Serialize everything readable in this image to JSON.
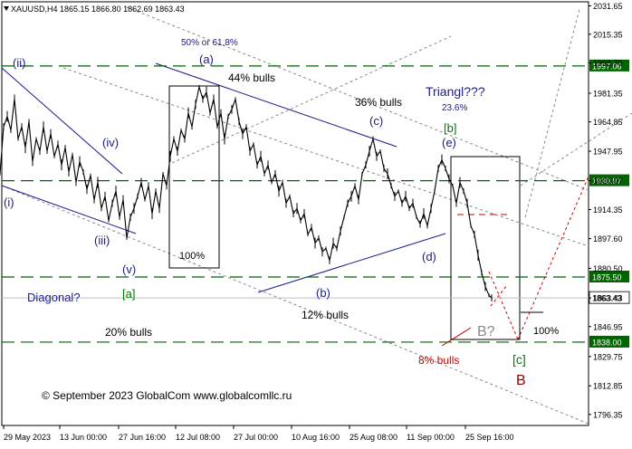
{
  "chart_data": {
    "type": "candlestick",
    "symbol_info": {
      "symbol": "XAUUSD,H4",
      "open": "1865.15",
      "high": "1866.80",
      "low": "1862.69",
      "close": "1863.43"
    },
    "ylim": [
      1790,
      2034
    ],
    "y_ticks": [
      "2031.65",
      "2015.35",
      "1998.70",
      "1981.35",
      "1964.85",
      "1947.95",
      "1930.97",
      "1914.35",
      "1897.60",
      "1880.50",
      "1863.43",
      "1846.95",
      "1829.75",
      "1812.85",
      "1796.35"
    ],
    "x_ticks": [
      "29 May 2023",
      "13 Jun 00:00",
      "27 Jun 16:00",
      "12 Jul 08:00",
      "27 Jul 00:00",
      "10 Aug 16:00",
      "25 Aug 08:00",
      "11 Sep 00:00",
      "25 Sep 16:00"
    ],
    "levels": [
      {
        "value": 1997.06,
        "label": "1997.06",
        "color": "#006400"
      },
      {
        "value": 1930.97,
        "label": "1930.97",
        "color": "#006400"
      },
      {
        "value": 1875.5,
        "label": "1875.50",
        "color": "#006400"
      },
      {
        "value": 1838.0,
        "label": "1838.00",
        "color": "#006400"
      }
    ],
    "current_price": {
      "value": 1863.43,
      "label": "1863.43"
    },
    "price_path": [
      [
        0,
        1935
      ],
      [
        4,
        1962
      ],
      [
        8,
        1968
      ],
      [
        12,
        1960
      ],
      [
        16,
        1978
      ],
      [
        20,
        1955
      ],
      [
        24,
        1962
      ],
      [
        28,
        1950
      ],
      [
        32,
        1965
      ],
      [
        36,
        1942
      ],
      [
        40,
        1955
      ],
      [
        44,
        1948
      ],
      [
        48,
        1962
      ],
      [
        52,
        1948
      ],
      [
        56,
        1958
      ],
      [
        60,
        1945
      ],
      [
        64,
        1952
      ],
      [
        68,
        1940
      ],
      [
        72,
        1950
      ],
      [
        76,
        1936
      ],
      [
        80,
        1946
      ],
      [
        84,
        1930
      ],
      [
        88,
        1942
      ],
      [
        92,
        1936
      ],
      [
        96,
        1926
      ],
      [
        100,
        1934
      ],
      [
        104,
        1920
      ],
      [
        108,
        1930
      ],
      [
        112,
        1915
      ],
      [
        116,
        1922
      ],
      [
        120,
        1908
      ],
      [
        124,
        1918
      ],
      [
        128,
        1925
      ],
      [
        132,
        1910
      ],
      [
        136,
        1920
      ],
      [
        140,
        1898
      ],
      [
        144,
        1910
      ],
      [
        148,
        1915
      ],
      [
        152,
        1922
      ],
      [
        156,
        1930
      ],
      [
        160,
        1920
      ],
      [
        164,
        1928
      ],
      [
        168,
        1912
      ],
      [
        172,
        1925
      ],
      [
        176,
        1915
      ],
      [
        180,
        1935
      ],
      [
        184,
        1928
      ],
      [
        188,
        1945
      ],
      [
        192,
        1955
      ],
      [
        196,
        1948
      ],
      [
        200,
        1960
      ],
      [
        204,
        1955
      ],
      [
        208,
        1970
      ],
      [
        212,
        1962
      ],
      [
        216,
        1975
      ],
      [
        220,
        1985
      ],
      [
        224,
        1978
      ],
      [
        228,
        1982
      ],
      [
        232,
        1970
      ],
      [
        236,
        1978
      ],
      [
        240,
        1962
      ],
      [
        244,
        1970
      ],
      [
        248,
        1955
      ],
      [
        252,
        1968
      ],
      [
        256,
        1972
      ],
      [
        260,
        1978
      ],
      [
        264,
        1965
      ],
      [
        268,
        1958
      ],
      [
        272,
        1962
      ],
      [
        276,
        1948
      ],
      [
        280,
        1952
      ],
      [
        284,
        1940
      ],
      [
        288,
        1945
      ],
      [
        292,
        1935
      ],
      [
        296,
        1940
      ],
      [
        300,
        1930
      ],
      [
        304,
        1935
      ],
      [
        308,
        1925
      ],
      [
        312,
        1930
      ],
      [
        316,
        1918
      ],
      [
        320,
        1922
      ],
      [
        324,
        1912
      ],
      [
        328,
        1915
      ],
      [
        332,
        1908
      ],
      [
        336,
        1912
      ],
      [
        340,
        1900
      ],
      [
        344,
        1904
      ],
      [
        348,
        1895
      ],
      [
        352,
        1898
      ],
      [
        356,
        1890
      ],
      [
        360,
        1892
      ],
      [
        364,
        1885
      ],
      [
        368,
        1895
      ],
      [
        372,
        1892
      ],
      [
        376,
        1902
      ],
      [
        380,
        1910
      ],
      [
        384,
        1918
      ],
      [
        388,
        1922
      ],
      [
        392,
        1928
      ],
      [
        396,
        1920
      ],
      [
        400,
        1935
      ],
      [
        404,
        1940
      ],
      [
        408,
        1948
      ],
      [
        412,
        1955
      ],
      [
        416,
        1945
      ],
      [
        420,
        1948
      ],
      [
        424,
        1938
      ],
      [
        428,
        1935
      ],
      [
        432,
        1928
      ],
      [
        436,
        1922
      ],
      [
        440,
        1925
      ],
      [
        444,
        1918
      ],
      [
        448,
        1922
      ],
      [
        452,
        1915
      ],
      [
        456,
        1918
      ],
      [
        460,
        1910
      ],
      [
        464,
        1906
      ],
      [
        468,
        1912
      ],
      [
        472,
        1905
      ],
      [
        476,
        1915
      ],
      [
        480,
        1925
      ],
      [
        484,
        1938
      ],
      [
        488,
        1943
      ],
      [
        492,
        1938
      ],
      [
        496,
        1932
      ],
      [
        500,
        1928
      ],
      [
        504,
        1918
      ],
      [
        508,
        1930
      ],
      [
        512,
        1925
      ],
      [
        516,
        1918
      ],
      [
        520,
        1905
      ],
      [
        524,
        1900
      ],
      [
        528,
        1888
      ],
      [
        532,
        1878
      ],
      [
        536,
        1870
      ],
      [
        540,
        1865
      ],
      [
        543,
        1863.43
      ]
    ],
    "annotations": [
      {
        "text": "(ii)",
        "color": "#1a1a8c",
        "size": 13
      },
      {
        "text": "(iv)",
        "color": "#1a1a8c",
        "size": 13
      },
      {
        "text": "(i)",
        "color": "#1a1a8c",
        "size": 13
      },
      {
        "text": "(iii)",
        "color": "#1a1a8c",
        "size": 13
      },
      {
        "text": "(v)",
        "color": "#1a1a8c",
        "size": 13
      },
      {
        "text": "[a]",
        "color": "#007a00",
        "size": 13
      },
      {
        "text": "Diagonal?",
        "color": "#1a1a8c",
        "size": 13
      },
      {
        "text": "50% or 61.8%",
        "color": "#1a1a8c",
        "size": 10
      },
      {
        "text": "(a)",
        "color": "#1a1a8c",
        "size": 13
      },
      {
        "text": "44% bulls",
        "color": "#000000",
        "size": 12
      },
      {
        "text": "100%",
        "color": "#000000",
        "size": 11
      },
      {
        "text": "(b)",
        "color": "#1a1a8c",
        "size": 13
      },
      {
        "text": "12% bulls",
        "color": "#000000",
        "size": 12
      },
      {
        "text": "20% bulls",
        "color": "#000000",
        "size": 12
      },
      {
        "text": "36% bulls",
        "color": "#000000",
        "size": 12
      },
      {
        "text": "(c)",
        "color": "#1a1a8c",
        "size": 13
      },
      {
        "text": "Triangl???",
        "color": "#1a1a8c",
        "size": 14
      },
      {
        "text": "23.6%",
        "color": "#1a1a8c",
        "size": 10
      },
      {
        "text": "[b]",
        "color": "#007a00",
        "size": 13
      },
      {
        "text": "(e)",
        "color": "#1a1a8c",
        "size": 13
      },
      {
        "text": "(d)",
        "color": "#1a1a8c",
        "size": 13
      },
      {
        "text": "B?",
        "color": "#888888",
        "size": 16
      },
      {
        "text": "100%",
        "color": "#000000",
        "size": 11
      },
      {
        "text": "8% bulls",
        "color": "#cc0000",
        "size": 12
      },
      {
        "text": "[c]",
        "color": "#007a00",
        "size": 14
      },
      {
        "text": "B",
        "color": "#8b0000",
        "size": 16
      },
      {
        "text": "© September 2023 GlobalCom www.globalcomllc.ru",
        "color": "#000000",
        "size": 12
      }
    ]
  }
}
